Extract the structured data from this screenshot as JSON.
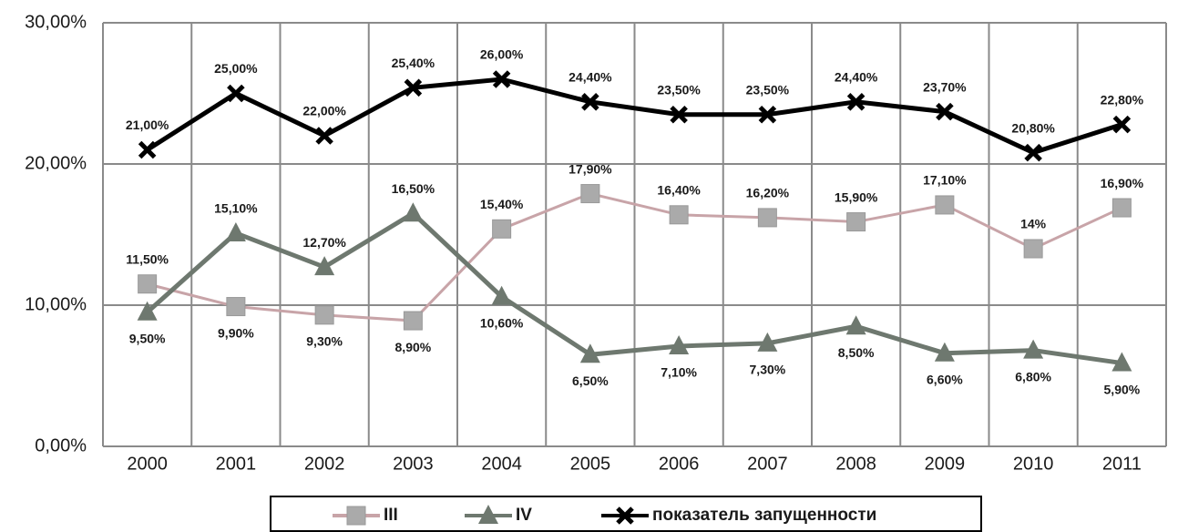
{
  "chart_data": {
    "type": "line",
    "categories": [
      "2000",
      "2001",
      "2002",
      "2003",
      "2004",
      "2005",
      "2006",
      "2007",
      "2008",
      "2009",
      "2010",
      "2011"
    ],
    "ylim": [
      0,
      30
    ],
    "yticks": [
      {
        "value": 0,
        "label": "0,00%"
      },
      {
        "value": 10,
        "label": "10,00%"
      },
      {
        "value": 20,
        "label": "20,00%"
      },
      {
        "value": 30,
        "label": "30,00%"
      }
    ],
    "grid": true,
    "legend": "bottom",
    "series": [
      {
        "name": "III",
        "color": "#aaaaaa",
        "line_color": "#c8a4a8",
        "marker": "square",
        "values": [
          11.5,
          9.9,
          9.3,
          8.9,
          15.4,
          17.9,
          16.4,
          16.2,
          15.9,
          17.1,
          14,
          16.9
        ],
        "value_labels": [
          "11,50%",
          "9,90%",
          "9,30%",
          "8,90%",
          "15,40%",
          "17,90%",
          "16,40%",
          "16,20%",
          "15,90%",
          "17,10%",
          "14%",
          "16,90%"
        ]
      },
      {
        "name": "IV",
        "color": "#6e786f",
        "line_color": "#6e786f",
        "marker": "triangle",
        "values": [
          9.5,
          15.1,
          12.7,
          16.5,
          10.6,
          6.5,
          7.1,
          7.3,
          8.5,
          6.6,
          6.8,
          5.9
        ],
        "value_labels": [
          "9,50%",
          "15,10%",
          "12,70%",
          "16,50%",
          "10,60%",
          "6,50%",
          "7,10%",
          "7,30%",
          "8,50%",
          "6,60%",
          "6,80%",
          "5,90%"
        ]
      },
      {
        "name": "показатель запущенности",
        "color": "#000000",
        "line_color": "#000000",
        "marker": "x",
        "values": [
          21,
          25,
          22,
          25.4,
          26,
          24.4,
          23.5,
          23.5,
          24.4,
          23.7,
          20.8,
          22.8
        ],
        "value_labels": [
          "21,00%",
          "25,00%",
          "22,00%",
          "25,40%",
          "26,00%",
          "24,40%",
          "23,50%",
          "23,50%",
          "24,40%",
          "23,70%",
          "20,80%",
          "22,80%"
        ]
      }
    ]
  }
}
